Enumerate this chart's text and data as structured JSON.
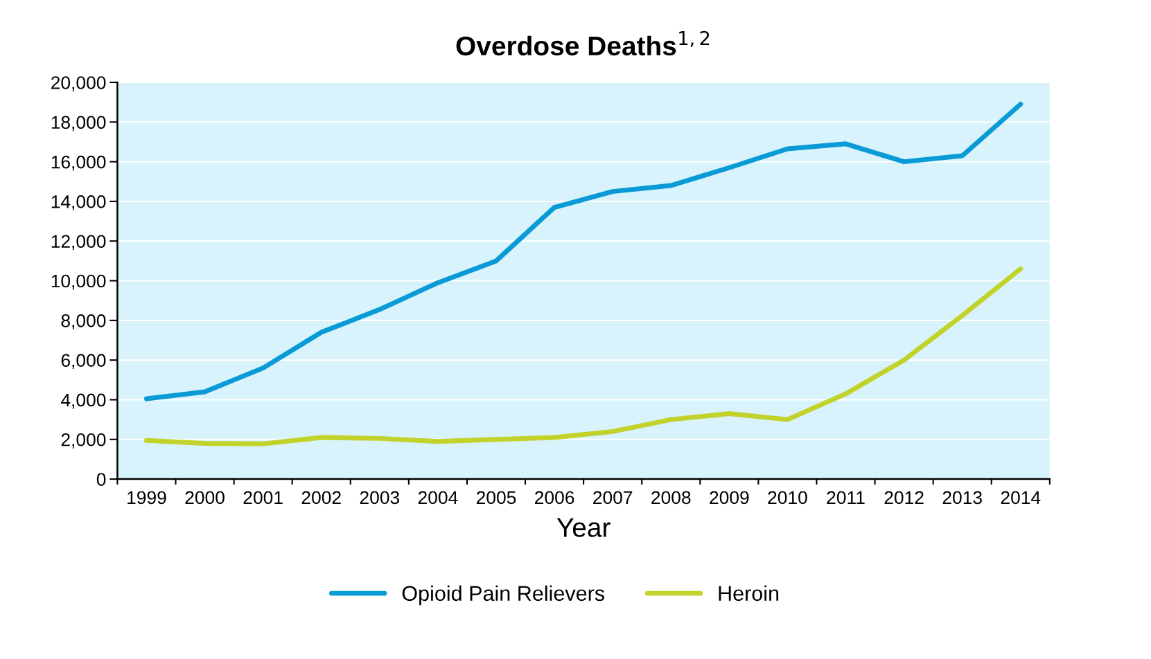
{
  "chart_data": {
    "type": "line",
    "title": "Overdose Deaths$^{1,2}$",
    "xlabel": "Year",
    "categories": [
      "1999",
      "2000",
      "2001",
      "2002",
      "2003",
      "2004",
      "2005",
      "2006",
      "2007",
      "2008",
      "2009",
      "2010",
      "2011",
      "2012",
      "2013",
      "2014"
    ],
    "series": [
      {
        "name": "Opioid Pain Relievers",
        "color": "#0a9bd7",
        "values": [
          4050,
          4400,
          5600,
          7400,
          8550,
          9900,
          11000,
          13700,
          14500,
          14800,
          15700,
          16650,
          16900,
          16000,
          16300,
          18900
        ]
      },
      {
        "name": "Heroin",
        "color": "#c2d22a",
        "values": [
          1950,
          1800,
          1780,
          2100,
          2050,
          1900,
          2000,
          2100,
          2400,
          3000,
          3300,
          3000,
          4300,
          6000,
          8250,
          10600
        ]
      }
    ],
    "ylim": [
      0,
      20000
    ],
    "yticks": [
      {
        "value": 0,
        "label": "0"
      },
      {
        "value": 2000,
        "label": "2,000"
      },
      {
        "value": 4000,
        "label": "4,000"
      },
      {
        "value": 6000,
        "label": "6,000"
      },
      {
        "value": 8000,
        "label": "8,000"
      },
      {
        "value": 10000,
        "label": "10,000"
      },
      {
        "value": 12000,
        "label": "12,000"
      },
      {
        "value": 14000,
        "label": "14,000"
      },
      {
        "value": 16000,
        "label": "16,000"
      },
      {
        "value": 18000,
        "label": "18,000"
      },
      {
        "value": 20000,
        "label": "20,000"
      }
    ],
    "grid": "y",
    "legend": "bottom",
    "line_style": "solid",
    "marker": "none"
  }
}
